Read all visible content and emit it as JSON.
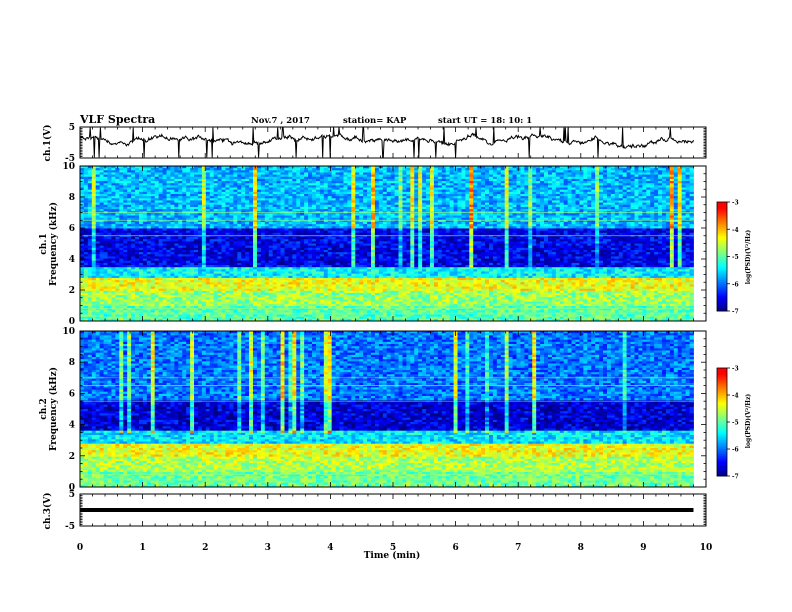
{
  "header": {
    "title": "VLF Spectra",
    "date": "Nov.7 , 2017",
    "station": "station= KAP",
    "start_time": "start UT = 18: 10: 1"
  },
  "colors": {
    "background": "#ffffff",
    "axis": "#000000",
    "trace": "#000000",
    "colormap": [
      "#000080",
      "#0000ff",
      "#0080ff",
      "#00ffff",
      "#80ff80",
      "#ffff00",
      "#ff8000",
      "#ff0000",
      "#ffffff"
    ]
  },
  "chart_data": [
    {
      "type": "line",
      "ylabel": "ch.1(V)",
      "xlim": [
        0,
        10
      ],
      "ylim": [
        -5,
        5
      ],
      "yticks": [
        5,
        -5
      ],
      "x_range_of_trace": [
        0,
        9.8
      ],
      "trace_summary": "fluctuating waveform near 0 V with spikes to -5 V"
    },
    {
      "type": "heatmap",
      "ylabel_lines": [
        "ch.1",
        "Frequency (kHz)"
      ],
      "xlim": [
        0,
        10
      ],
      "ylim": [
        0,
        10
      ],
      "yticks": [
        0,
        2,
        4,
        6,
        8,
        10
      ],
      "colorbar": {
        "label": "log(PSD)(V²/Hz)",
        "range": [
          -7,
          -3
        ],
        "ticks": [
          -3,
          -4,
          -5,
          -6,
          -7
        ]
      },
      "x_range_of_data": [
        0,
        9.8
      ],
      "bands": [
        {
          "freq": [
            0,
            1.0
          ],
          "level": -4.9
        },
        {
          "freq": [
            1.0,
            2.0
          ],
          "level": -4.6
        },
        {
          "freq": [
            2.0,
            2.8
          ],
          "level": -4.2
        },
        {
          "freq": [
            2.8,
            3.5
          ],
          "level": -5.3
        },
        {
          "freq": [
            3.5,
            6.0
          ],
          "level": -6.5
        },
        {
          "freq": [
            6.0,
            10.0
          ],
          "level": -5.6
        }
      ]
    },
    {
      "type": "heatmap",
      "ylabel_lines": [
        "ch.2",
        "Frequency (kHz)"
      ],
      "xlim": [
        0,
        10
      ],
      "ylim": [
        0,
        10
      ],
      "yticks": [
        0,
        2,
        4,
        6,
        8,
        10
      ],
      "colorbar": {
        "label": "log(PSD)(V²/Hz)",
        "range": [
          -7,
          -3
        ],
        "ticks": [
          -3,
          -4,
          -5,
          -6,
          -7
        ]
      },
      "x_range_of_data": [
        0,
        9.8
      ],
      "bands": [
        {
          "freq": [
            0,
            1.0
          ],
          "level": -4.8
        },
        {
          "freq": [
            1.0,
            2.0
          ],
          "level": -4.5
        },
        {
          "freq": [
            2.0,
            2.8
          ],
          "level": -4.2
        },
        {
          "freq": [
            2.8,
            3.6
          ],
          "level": -5.4
        },
        {
          "freq": [
            3.6,
            5.5
          ],
          "level": -6.6
        },
        {
          "freq": [
            5.5,
            10.0
          ],
          "level": -5.9
        }
      ]
    },
    {
      "type": "line",
      "ylabel": "ch.3(V)",
      "xlabel": "Time (min)",
      "xlim": [
        0,
        10
      ],
      "ylim": [
        -5,
        5
      ],
      "yticks": [
        5,
        -5
      ],
      "xticks": [
        0,
        1,
        2,
        3,
        4,
        5,
        6,
        7,
        8,
        9,
        10
      ],
      "x_range_of_trace": [
        0,
        9.8
      ],
      "constant_value": 0
    }
  ]
}
